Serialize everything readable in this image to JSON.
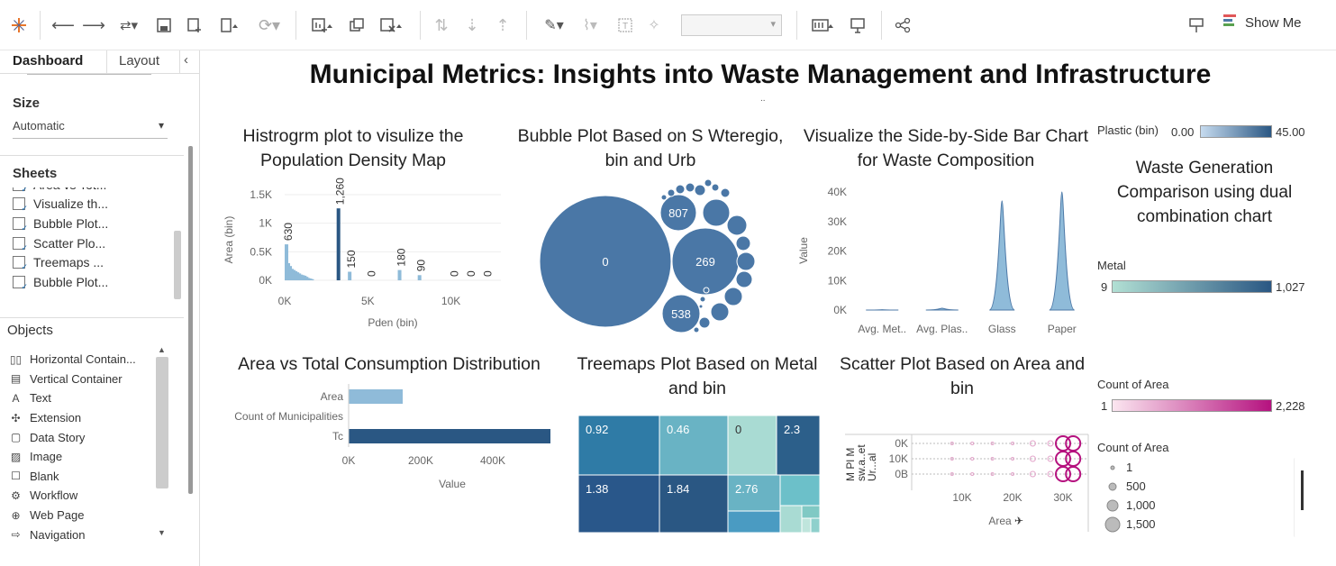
{
  "toolbar": {
    "show_me_label": "Show Me",
    "icons": [
      "tableau-logo-icon",
      "undo-icon",
      "redo-icon",
      "replay-icon",
      "save-icon",
      "new-datasource-icon",
      "pause-icon",
      "refresh-icon",
      "new-worksheet-icon",
      "duplicate-icon",
      "clear-icon",
      "swap-icon",
      "sort-asc-icon",
      "sort-desc-icon",
      "highlight-icon",
      "attach-icon",
      "label-icon",
      "pin-icon",
      "fit-dropdown",
      "show-cards-icon",
      "presentation-icon",
      "share-icon",
      "tooltip-icon"
    ]
  },
  "sidebar": {
    "tabs": {
      "dashboard": "Dashboard",
      "layout": "Layout"
    },
    "size": {
      "title": "Size",
      "value": "Automatic"
    },
    "sheets": {
      "title": "Sheets",
      "items": [
        "Area vs Tot...",
        "Visualize th...",
        "Bubble Plot...",
        "Scatter Plo...",
        "Treemaps ...",
        "Bubble Plot..."
      ]
    },
    "objects": {
      "title": "Objects",
      "items": [
        {
          "label": "Horizontal Contain...",
          "icon": "horizontal-container-icon"
        },
        {
          "label": "Vertical Container",
          "icon": "vertical-container-icon"
        },
        {
          "label": "Text",
          "icon": "text-icon"
        },
        {
          "label": "Extension",
          "icon": "extension-icon"
        },
        {
          "label": "Data Story",
          "icon": "data-story-icon"
        },
        {
          "label": "Image",
          "icon": "image-icon"
        },
        {
          "label": "Blank",
          "icon": "blank-icon"
        },
        {
          "label": "Workflow",
          "icon": "workflow-icon"
        },
        {
          "label": "Web Page",
          "icon": "web-page-icon"
        },
        {
          "label": "Navigation",
          "icon": "navigation-icon"
        }
      ]
    }
  },
  "dashboard": {
    "title": "Municipal Metrics: Insights into Waste Management and Infrastructure",
    "subtitle_mark": ".."
  },
  "chart_data": [
    {
      "type": "bar",
      "title": "Histrogrm plot to visulize the Population Density Map",
      "xlabel": "Pden (bin)",
      "ylabel": "Area (bin)",
      "x_ticks": [
        "0K",
        "5K",
        "10K"
      ],
      "y_ticks": [
        "0K",
        "0.5K",
        "1K",
        "1.5K"
      ],
      "ylim": [
        0,
        1500
      ],
      "xlim": [
        0,
        13000
      ],
      "labeled_bars": [
        {
          "x": 0,
          "value": 630
        },
        {
          "x": 1500,
          "value": 1260,
          "label": "1,260"
        },
        {
          "x": 3800,
          "value": 150
        },
        {
          "x": 5000,
          "value": 0
        },
        {
          "x": 6800,
          "value": 180
        },
        {
          "x": 8000,
          "value": 90
        },
        {
          "x": 10000,
          "value": 0
        },
        {
          "x": 11000,
          "value": 0
        },
        {
          "x": 12000,
          "value": 0
        }
      ]
    },
    {
      "type": "bubble",
      "title": "Bubble Plot Based on S Wteregio, bin and Urb",
      "bubbles": [
        {
          "label": "0",
          "size": 100
        },
        {
          "label": "269",
          "size": 32
        },
        {
          "label": "807",
          "size": 16
        },
        {
          "label": "538",
          "size": 16
        }
      ]
    },
    {
      "type": "area",
      "title": "Visualize the Side-by-Side Bar Chart for Waste Composition",
      "ylabel": "Value",
      "categories": [
        "Avg. Met..",
        "Avg. Plas..",
        "Glass",
        "Paper"
      ],
      "peaks": [
        100,
        600,
        37000,
        40000
      ],
      "ylim": [
        0,
        40000
      ],
      "y_ticks": [
        "0K",
        "10K",
        "20K",
        "30K",
        "40K"
      ]
    },
    {
      "type": "bar",
      "title": "Area vs Total Consumption Distribution",
      "xlabel": "Value",
      "categories": [
        "Area",
        "Count of Municipalities",
        "Tc"
      ],
      "values": [
        150000,
        0,
        560000
      ],
      "x_ticks": [
        "0K",
        "200K",
        "400K"
      ],
      "xlim": [
        0,
        600000
      ]
    },
    {
      "type": "heatmap",
      "title": "Treemaps Plot Based on Metal and bin",
      "cells": [
        {
          "label": "0.92"
        },
        {
          "label": "0.46"
        },
        {
          "label": "0"
        },
        {
          "label": "2.3"
        },
        {
          "label": "1.38"
        },
        {
          "label": "1.84"
        },
        {
          "label": "2.76"
        }
      ]
    },
    {
      "type": "scatter",
      "title": "Scatter Plot Based on Area and bin",
      "xlabel": "Area",
      "x_ticks": [
        "10K",
        "20K",
        "30K"
      ],
      "row_ticks": [
        "0K",
        "10K",
        "0B"
      ],
      "row_headers": [
        "M Pl M",
        "sw.a..et",
        "Ur...al"
      ],
      "xlim": [
        0,
        35000
      ]
    }
  ],
  "legends": {
    "plastic": {
      "title": "Plastic (bin)",
      "min": "0.00",
      "max": "45.00",
      "from": "#c6dbef",
      "to": "#2a5783"
    },
    "waste_title": "Waste Generation Comparison using dual combination chart",
    "metal": {
      "title": "Metal",
      "min": "9",
      "max": "1,027",
      "from": "#b2e0d4",
      "to": "#2a5783"
    },
    "count_area": {
      "title": "Count of Area",
      "min": "1",
      "max": "2,228",
      "from": "#fbe6f0",
      "to": "#b5127f"
    },
    "count_area_size": {
      "title": "Count of Area",
      "items": [
        "1",
        "500",
        "1,000",
        "1,500"
      ]
    }
  },
  "colors": {
    "accent_blue": "#4e79a7",
    "dark_blue": "#2a5783",
    "light_blue": "#8fbbd9",
    "magenta": "#b5127f"
  }
}
